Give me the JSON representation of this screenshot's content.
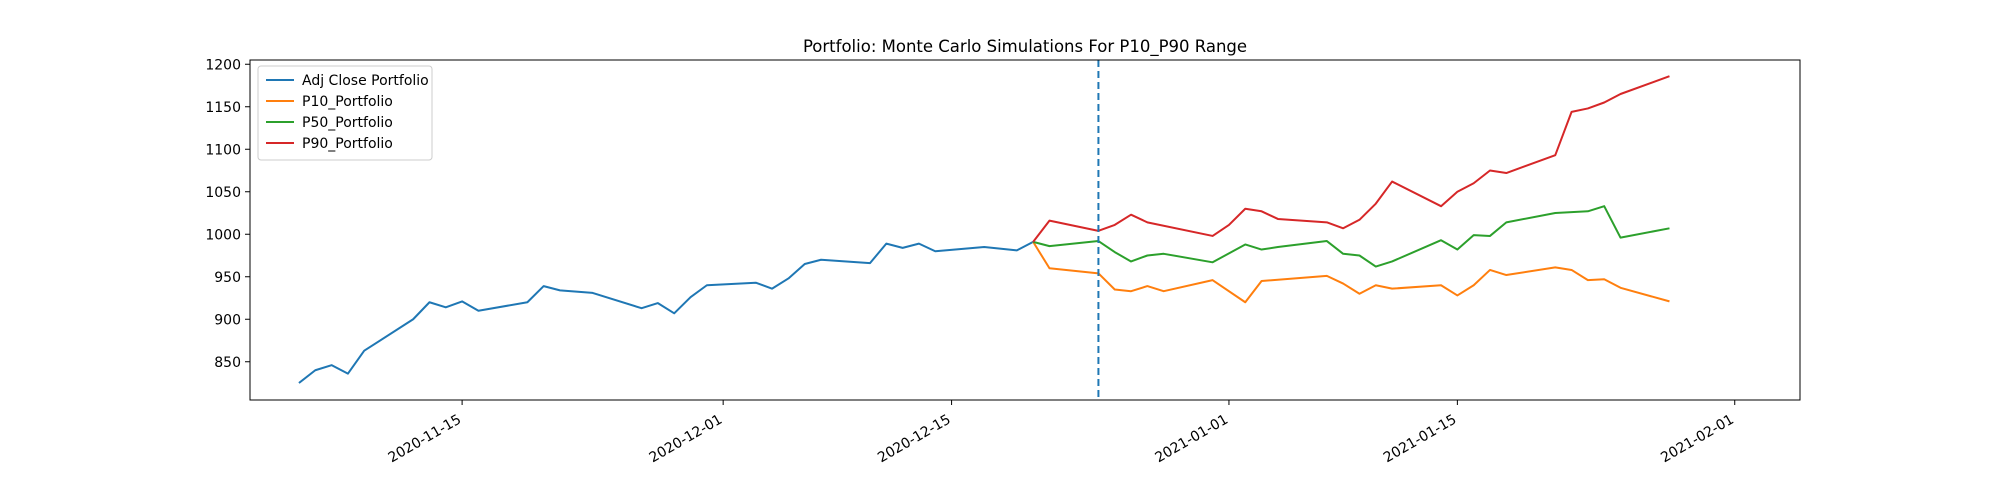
{
  "chart_data": {
    "type": "line",
    "title": "Portfolio: Monte Carlo Simulations For P10_P90 Range",
    "xlabel": "",
    "ylabel": "",
    "x_axis_type": "date",
    "xlim": [
      "2020-11-02",
      "2021-02-05"
    ],
    "ylim": [
      805,
      1205
    ],
    "x_ticks": [
      "2020-11-15",
      "2020-12-01",
      "2020-12-15",
      "2021-01-01",
      "2021-01-15",
      "2021-02-01"
    ],
    "y_ticks": [
      850,
      900,
      950,
      1000,
      1050,
      1100,
      1150,
      1200
    ],
    "grid": false,
    "legend_position": "top-left",
    "vertical_line": {
      "x": "2020-12-24",
      "style": "dashed",
      "color": "#1f77b4"
    },
    "series": [
      {
        "name": "Adj Close Portfolio",
        "color": "#1f77b4",
        "points": [
          [
            "2020-11-05",
            825
          ],
          [
            "2020-11-06",
            840
          ],
          [
            "2020-11-07",
            846
          ],
          [
            "2020-11-08",
            836
          ],
          [
            "2020-11-09",
            863
          ],
          [
            "2020-11-12",
            900
          ],
          [
            "2020-11-13",
            920
          ],
          [
            "2020-11-14",
            914
          ],
          [
            "2020-11-15",
            921
          ],
          [
            "2020-11-16",
            910
          ],
          [
            "2020-11-19",
            920
          ],
          [
            "2020-11-20",
            939
          ],
          [
            "2020-11-21",
            934
          ],
          [
            "2020-11-23",
            931
          ],
          [
            "2020-11-26",
            913
          ],
          [
            "2020-11-27",
            919
          ],
          [
            "2020-11-28",
            907
          ],
          [
            "2020-11-29",
            926
          ],
          [
            "2020-11-30",
            940
          ],
          [
            "2020-12-03",
            943
          ],
          [
            "2020-12-04",
            936
          ],
          [
            "2020-12-05",
            948
          ],
          [
            "2020-12-06",
            965
          ],
          [
            "2020-12-07",
            970
          ],
          [
            "2020-12-10",
            966
          ],
          [
            "2020-12-11",
            989
          ],
          [
            "2020-12-12",
            984
          ],
          [
            "2020-12-13",
            989
          ],
          [
            "2020-12-14",
            980
          ],
          [
            "2020-12-17",
            985
          ],
          [
            "2020-12-19",
            981
          ],
          [
            "2020-12-20",
            991
          ]
        ]
      },
      {
        "name": "P10_Portfolio",
        "color": "#ff7f0e",
        "points": [
          [
            "2020-12-20",
            991
          ],
          [
            "2020-12-21",
            960
          ],
          [
            "2020-12-24",
            954
          ],
          [
            "2020-12-25",
            935
          ],
          [
            "2020-12-26",
            933
          ],
          [
            "2020-12-27",
            939
          ],
          [
            "2020-12-28",
            933
          ],
          [
            "2020-12-31",
            946
          ],
          [
            "2021-01-02",
            920
          ],
          [
            "2021-01-03",
            945
          ],
          [
            "2021-01-07",
            951
          ],
          [
            "2021-01-08",
            942
          ],
          [
            "2021-01-09",
            930
          ],
          [
            "2021-01-10",
            940
          ],
          [
            "2021-01-11",
            936
          ],
          [
            "2021-01-14",
            940
          ],
          [
            "2021-01-15",
            928
          ],
          [
            "2021-01-16",
            940
          ],
          [
            "2021-01-17",
            958
          ],
          [
            "2021-01-18",
            952
          ],
          [
            "2021-01-21",
            961
          ],
          [
            "2021-01-22",
            958
          ],
          [
            "2021-01-23",
            946
          ],
          [
            "2021-01-24",
            947
          ],
          [
            "2021-01-25",
            937
          ],
          [
            "2021-01-28",
            921
          ]
        ]
      },
      {
        "name": "P50_Portfolio",
        "color": "#2ca02c",
        "points": [
          [
            "2020-12-20",
            991
          ],
          [
            "2020-12-21",
            986
          ],
          [
            "2020-12-24",
            992
          ],
          [
            "2020-12-25",
            979
          ],
          [
            "2020-12-26",
            968
          ],
          [
            "2020-12-27",
            975
          ],
          [
            "2020-12-28",
            977
          ],
          [
            "2020-12-31",
            967
          ],
          [
            "2021-01-02",
            988
          ],
          [
            "2021-01-03",
            982
          ],
          [
            "2021-01-04",
            985
          ],
          [
            "2021-01-07",
            992
          ],
          [
            "2021-01-08",
            977
          ],
          [
            "2021-01-09",
            975
          ],
          [
            "2021-01-10",
            962
          ],
          [
            "2021-01-11",
            968
          ],
          [
            "2021-01-14",
            993
          ],
          [
            "2021-01-15",
            982
          ],
          [
            "2021-01-16",
            999
          ],
          [
            "2021-01-17",
            998
          ],
          [
            "2021-01-18",
            1014
          ],
          [
            "2021-01-21",
            1025
          ],
          [
            "2021-01-22",
            1026
          ],
          [
            "2021-01-23",
            1027
          ],
          [
            "2021-01-24",
            1033
          ],
          [
            "2021-01-25",
            996
          ],
          [
            "2021-01-28",
            1007
          ]
        ]
      },
      {
        "name": "P90_Portfolio",
        "color": "#d62728",
        "points": [
          [
            "2020-12-20",
            991
          ],
          [
            "2020-12-21",
            1016
          ],
          [
            "2020-12-24",
            1004
          ],
          [
            "2020-12-25",
            1011
          ],
          [
            "2020-12-26",
            1023
          ],
          [
            "2020-12-27",
            1014
          ],
          [
            "2020-12-31",
            998
          ],
          [
            "2021-01-01",
            1011
          ],
          [
            "2021-01-02",
            1030
          ],
          [
            "2021-01-03",
            1027
          ],
          [
            "2021-01-04",
            1018
          ],
          [
            "2021-01-07",
            1014
          ],
          [
            "2021-01-08",
            1007
          ],
          [
            "2021-01-09",
            1017
          ],
          [
            "2021-01-10",
            1036
          ],
          [
            "2021-01-11",
            1062
          ],
          [
            "2021-01-14",
            1033
          ],
          [
            "2021-01-15",
            1050
          ],
          [
            "2021-01-16",
            1060
          ],
          [
            "2021-01-17",
            1075
          ],
          [
            "2021-01-18",
            1072
          ],
          [
            "2021-01-21",
            1093
          ],
          [
            "2021-01-22",
            1144
          ],
          [
            "2021-01-23",
            1148
          ],
          [
            "2021-01-24",
            1155
          ],
          [
            "2021-01-25",
            1165
          ],
          [
            "2021-01-28",
            1186
          ]
        ]
      }
    ]
  }
}
